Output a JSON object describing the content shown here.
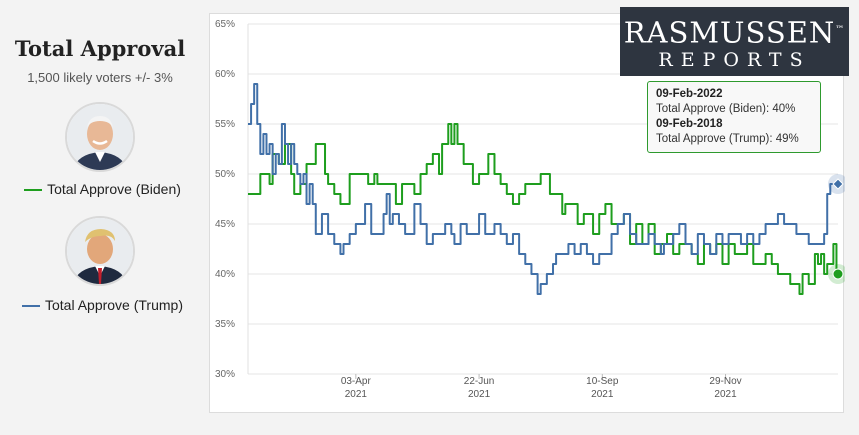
{
  "panel": {
    "title": "Total Approval",
    "subtitle": "1,500 likely voters +/- 3%"
  },
  "logo": {
    "line1": "RASMUSSEN",
    "tm": "™",
    "line2": "REPORTS"
  },
  "tooltip": {
    "date1": "09-Feb-2022",
    "line1": "Total Approve (Biden): 40%",
    "date2": "09-Feb-2018",
    "line2": "Total Approve (Trump): 49%"
  },
  "colors": {
    "biden": "#1e9e1e",
    "trump": "#4170a8"
  },
  "chart_data": {
    "type": "line",
    "title": "Total Approval",
    "ylim": [
      30,
      65
    ],
    "yticks": [
      "30%",
      "35%",
      "40%",
      "45%",
      "50%",
      "55%",
      "60%",
      "65%"
    ],
    "xlim": [
      0,
      383
    ],
    "xticks": [
      {
        "x": 70,
        "label": "03-Apr",
        "year": "2021"
      },
      {
        "x": 150,
        "label": "22-Jun",
        "year": "2021"
      },
      {
        "x": 230,
        "label": "10-Sep",
        "year": "2021"
      },
      {
        "x": 310,
        "label": "29-Nov",
        "year": "2021"
      }
    ],
    "series": [
      {
        "name": "Total Approve (Biden)",
        "color": "#1e9e1e",
        "points": [
          [
            0,
            48
          ],
          [
            6,
            48
          ],
          [
            8,
            50
          ],
          [
            12,
            50
          ],
          [
            14,
            49
          ],
          [
            16,
            52
          ],
          [
            20,
            51
          ],
          [
            24,
            53
          ],
          [
            28,
            50
          ],
          [
            30,
            48
          ],
          [
            34,
            49
          ],
          [
            38,
            51
          ],
          [
            44,
            53
          ],
          [
            48,
            53
          ],
          [
            50,
            50
          ],
          [
            52,
            49
          ],
          [
            56,
            48
          ],
          [
            60,
            47
          ],
          [
            62,
            47
          ],
          [
            66,
            50
          ],
          [
            72,
            50
          ],
          [
            78,
            49
          ],
          [
            82,
            50
          ],
          [
            84,
            49
          ],
          [
            90,
            49
          ],
          [
            96,
            47
          ],
          [
            100,
            49
          ],
          [
            104,
            49
          ],
          [
            108,
            48
          ],
          [
            112,
            50
          ],
          [
            116,
            51
          ],
          [
            120,
            52
          ],
          [
            124,
            50
          ],
          [
            126,
            53
          ],
          [
            128,
            53
          ],
          [
            130,
            55
          ],
          [
            132,
            53
          ],
          [
            134,
            55
          ],
          [
            136,
            53
          ],
          [
            140,
            51
          ],
          [
            146,
            49
          ],
          [
            150,
            50
          ],
          [
            156,
            52
          ],
          [
            160,
            50
          ],
          [
            164,
            49
          ],
          [
            168,
            48
          ],
          [
            172,
            47
          ],
          [
            176,
            48
          ],
          [
            180,
            49
          ],
          [
            184,
            49
          ],
          [
            190,
            50
          ],
          [
            196,
            48
          ],
          [
            200,
            48
          ],
          [
            204,
            46
          ],
          [
            206,
            47
          ],
          [
            210,
            47
          ],
          [
            214,
            45
          ],
          [
            218,
            46
          ],
          [
            224,
            44
          ],
          [
            228,
            46
          ],
          [
            232,
            47
          ],
          [
            236,
            45
          ],
          [
            240,
            45
          ],
          [
            244,
            46
          ],
          [
            248,
            43
          ],
          [
            252,
            45
          ],
          [
            256,
            43
          ],
          [
            260,
            45
          ],
          [
            264,
            42
          ],
          [
            268,
            43
          ],
          [
            272,
            44
          ],
          [
            276,
            42
          ],
          [
            280,
            43
          ],
          [
            284,
            43
          ],
          [
            288,
            42
          ],
          [
            292,
            41
          ],
          [
            296,
            43
          ],
          [
            300,
            42
          ],
          [
            304,
            43
          ],
          [
            308,
            41
          ],
          [
            312,
            43
          ],
          [
            316,
            42
          ],
          [
            320,
            42
          ],
          [
            324,
            43
          ],
          [
            328,
            41
          ],
          [
            332,
            41
          ],
          [
            336,
            42
          ],
          [
            340,
            41
          ],
          [
            344,
            40
          ],
          [
            348,
            40
          ],
          [
            352,
            39
          ],
          [
            354,
            39
          ],
          [
            358,
            38
          ],
          [
            360,
            40
          ],
          [
            364,
            39
          ],
          [
            368,
            42
          ],
          [
            370,
            41
          ],
          [
            372,
            42
          ],
          [
            374,
            40
          ],
          [
            376,
            41
          ],
          [
            378,
            41
          ],
          [
            380,
            43
          ],
          [
            382,
            40
          ],
          [
            383,
            40
          ]
        ]
      },
      {
        "name": "Total Approve (Trump)",
        "color": "#4170a8",
        "points": [
          [
            0,
            55
          ],
          [
            2,
            57
          ],
          [
            4,
            59
          ],
          [
            6,
            55
          ],
          [
            8,
            52
          ],
          [
            10,
            54
          ],
          [
            12,
            52
          ],
          [
            14,
            53
          ],
          [
            16,
            50
          ],
          [
            18,
            52
          ],
          [
            20,
            51
          ],
          [
            22,
            55
          ],
          [
            24,
            53
          ],
          [
            26,
            51
          ],
          [
            28,
            53
          ],
          [
            30,
            51
          ],
          [
            32,
            50
          ],
          [
            34,
            49
          ],
          [
            36,
            50
          ],
          [
            38,
            47
          ],
          [
            40,
            49
          ],
          [
            42,
            47
          ],
          [
            44,
            44
          ],
          [
            48,
            46
          ],
          [
            52,
            44
          ],
          [
            56,
            43
          ],
          [
            60,
            42
          ],
          [
            62,
            43
          ],
          [
            66,
            44
          ],
          [
            70,
            45
          ],
          [
            72,
            45
          ],
          [
            76,
            47
          ],
          [
            80,
            44
          ],
          [
            84,
            44
          ],
          [
            88,
            46
          ],
          [
            90,
            48
          ],
          [
            92,
            45
          ],
          [
            94,
            46
          ],
          [
            98,
            45
          ],
          [
            102,
            44
          ],
          [
            104,
            44
          ],
          [
            108,
            47
          ],
          [
            112,
            45
          ],
          [
            116,
            43
          ],
          [
            120,
            44
          ],
          [
            124,
            44
          ],
          [
            128,
            45
          ],
          [
            132,
            44
          ],
          [
            134,
            43
          ],
          [
            138,
            45
          ],
          [
            142,
            44
          ],
          [
            146,
            44
          ],
          [
            150,
            46
          ],
          [
            154,
            44
          ],
          [
            158,
            44
          ],
          [
            160,
            45
          ],
          [
            164,
            44
          ],
          [
            168,
            43
          ],
          [
            172,
            44
          ],
          [
            176,
            42
          ],
          [
            180,
            41
          ],
          [
            184,
            40
          ],
          [
            188,
            38
          ],
          [
            190,
            39
          ],
          [
            194,
            40
          ],
          [
            198,
            41
          ],
          [
            200,
            42
          ],
          [
            204,
            42
          ],
          [
            208,
            43
          ],
          [
            212,
            42
          ],
          [
            216,
            43
          ],
          [
            220,
            42
          ],
          [
            224,
            41
          ],
          [
            228,
            42
          ],
          [
            232,
            42
          ],
          [
            236,
            44
          ],
          [
            240,
            45
          ],
          [
            244,
            46
          ],
          [
            248,
            44
          ],
          [
            252,
            43
          ],
          [
            256,
            43
          ],
          [
            260,
            44
          ],
          [
            264,
            43
          ],
          [
            268,
            42
          ],
          [
            270,
            43
          ],
          [
            272,
            43
          ],
          [
            276,
            44
          ],
          [
            280,
            45
          ],
          [
            284,
            43
          ],
          [
            288,
            42
          ],
          [
            292,
            44
          ],
          [
            296,
            43
          ],
          [
            300,
            42
          ],
          [
            304,
            44
          ],
          [
            308,
            43
          ],
          [
            312,
            44
          ],
          [
            316,
            44
          ],
          [
            320,
            43
          ],
          [
            324,
            44
          ],
          [
            328,
            43
          ],
          [
            332,
            44
          ],
          [
            336,
            45
          ],
          [
            340,
            45
          ],
          [
            344,
            46
          ],
          [
            348,
            45
          ],
          [
            352,
            45
          ],
          [
            356,
            44
          ],
          [
            360,
            44
          ],
          [
            364,
            43
          ],
          [
            368,
            43
          ],
          [
            372,
            43
          ],
          [
            374,
            44
          ],
          [
            376,
            48
          ],
          [
            378,
            49
          ],
          [
            380,
            49
          ],
          [
            382,
            49
          ],
          [
            383,
            49
          ]
        ]
      }
    ],
    "markers": [
      {
        "series": "Total Approve (Trump)",
        "x": 383,
        "y": 49
      },
      {
        "series": "Total Approve (Biden)",
        "x": 383,
        "y": 40
      }
    ]
  },
  "legend": {
    "biden": "Total Approve (Biden)",
    "trump": "Total Approve (Trump)"
  }
}
